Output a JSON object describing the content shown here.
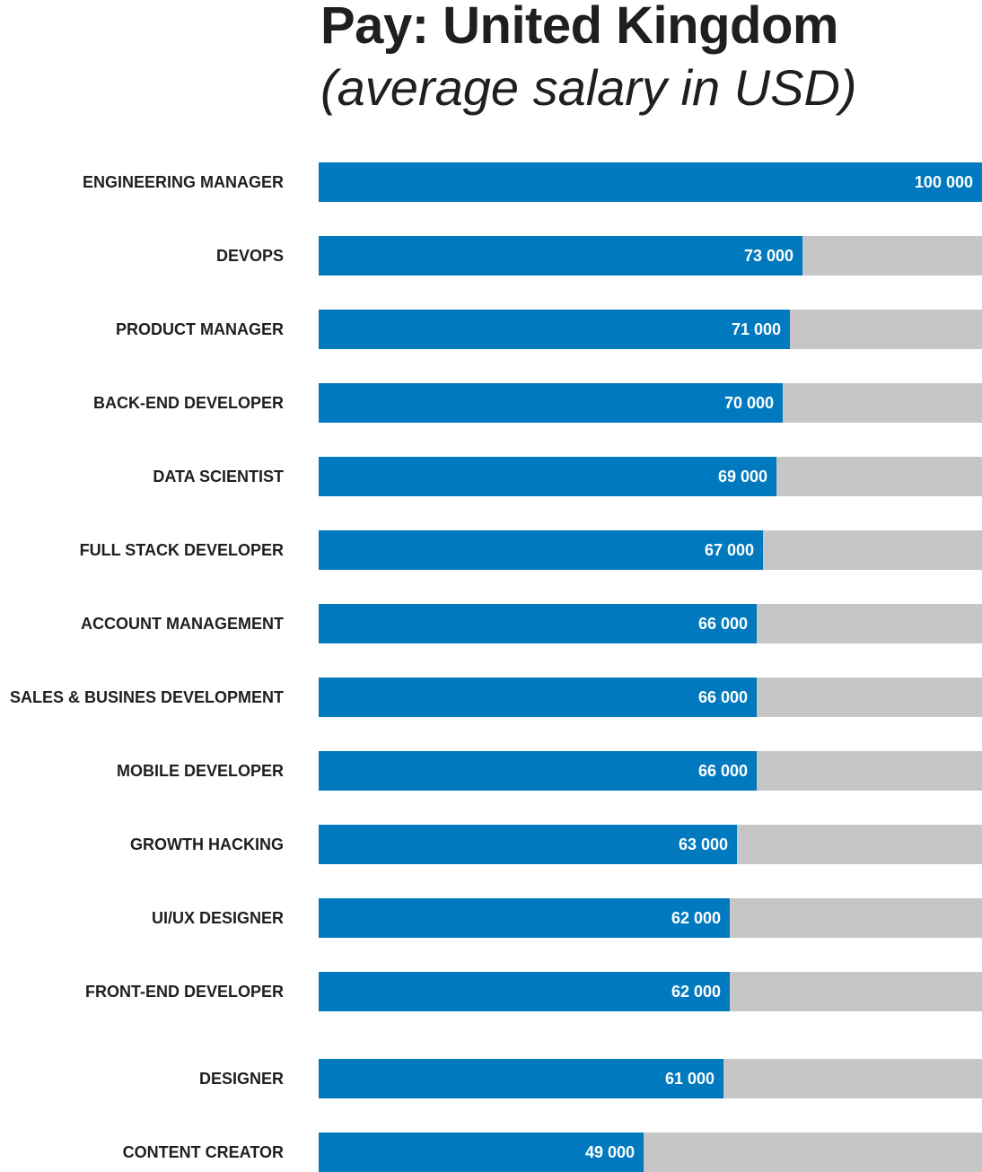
{
  "title": "Pay: United Kingdom",
  "subtitle": "(average salary in USD)",
  "colors": {
    "bar": "#0179be",
    "track": "#c6c6c6",
    "text": "#1f1f1f",
    "value_text": "#ffffff"
  },
  "chart_data": {
    "type": "bar",
    "orientation": "horizontal",
    "title": "Pay: United Kingdom",
    "subtitle": "(average salary in USD)",
    "xlim": [
      0,
      100000
    ],
    "grid": false,
    "categories": [
      "ENGINEERING MANAGER",
      "DEVOPS",
      "PRODUCT MANAGER",
      "BACK-END DEVELOPER",
      "DATA SCIENTIST",
      "FULL STACK DEVELOPER",
      "ACCOUNT MANAGEMENT",
      "SALES & BUSINES DEVELOPMENT",
      "MOBILE DEVELOPER",
      "GROWTH HACKING",
      "UI/UX DESIGNER",
      "FRONT-END DEVELOPER",
      "DESIGNER",
      "CONTENT CREATOR"
    ],
    "values": [
      100000,
      73000,
      71000,
      70000,
      69000,
      67000,
      66000,
      66000,
      66000,
      63000,
      62000,
      62000,
      61000,
      49000
    ],
    "value_labels": [
      "100 000",
      "73 000",
      "71 000",
      "70 000",
      "69 000",
      "67 000",
      "66 000",
      "66 000",
      "66 000",
      "63 000",
      "62 000",
      "62 000",
      "61 000",
      "49 000"
    ]
  }
}
